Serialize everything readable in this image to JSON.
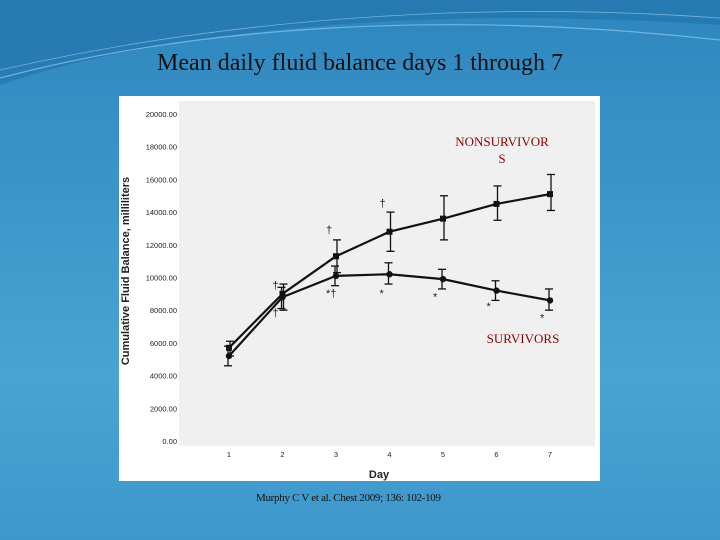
{
  "slide": {
    "title": "Mean daily fluid balance days 1 through 7",
    "citation": "Murphy C V et al. Chest 2009; 136: 102-109"
  },
  "chart_data": {
    "type": "line",
    "xlabel": "Day",
    "ylabel": "Cumulative Fluid Balance, milliliters",
    "x": [
      1,
      2,
      3,
      4,
      5,
      6,
      7
    ],
    "x_tick_labels": [
      "1",
      "2",
      "3",
      "4",
      "5",
      "6",
      "7"
    ],
    "ylim": [
      0,
      20000
    ],
    "y_tick_labels": [
      "0.00",
      "2000.00",
      "4000.00",
      "6000.00",
      "8000.00",
      "10000.00",
      "12000.00",
      "14000.00",
      "16000.00",
      "18000.00",
      "20000.00"
    ],
    "grid": false,
    "series": [
      {
        "name": "NONSURVIVOR S",
        "name_lines": [
          "NONSURVIVOR",
          "S"
        ],
        "marker": "square",
        "values": [
          5700,
          9000,
          11300,
          12800,
          13600,
          14500,
          15100
        ],
        "err_low": [
          5200,
          8000,
          10300,
          11600,
          12300,
          13500,
          14100
        ],
        "err_high": [
          6100,
          9600,
          12300,
          14000,
          15000,
          15600,
          16300
        ]
      },
      {
        "name": "SURVIVORS",
        "name_lines": [
          "SURVIVORS"
        ],
        "marker": "circle",
        "values": [
          5200,
          8800,
          10100,
          10200,
          9900,
          9200,
          8600
        ],
        "err_low": [
          4600,
          8100,
          9500,
          9600,
          9300,
          8600,
          8000
        ],
        "err_high": [
          5800,
          9400,
          10700,
          10900,
          10500,
          9800,
          9300
        ]
      }
    ],
    "annotations": [
      {
        "text": "†",
        "x": 3,
        "y": 12700
      },
      {
        "text": "†",
        "x": 4,
        "y": 14300
      },
      {
        "text": "†",
        "x": 2,
        "y": 9300
      },
      {
        "text": "†",
        "x": 2,
        "y": 7600
      },
      {
        "text": "*†",
        "x": 3,
        "y": 8800
      },
      {
        "text": "*",
        "x": 4,
        "y": 8800
      },
      {
        "text": "*",
        "x": 5,
        "y": 8600
      },
      {
        "text": "*",
        "x": 6,
        "y": 8000
      },
      {
        "text": "*",
        "x": 7,
        "y": 7300
      }
    ]
  }
}
